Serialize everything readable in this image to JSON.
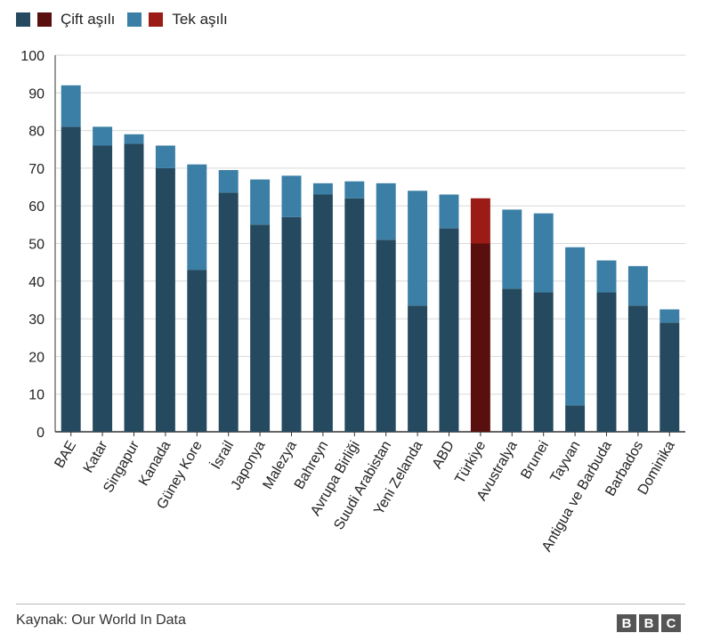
{
  "legend": {
    "items": [
      {
        "label": "Çift aşılı",
        "colors": [
          "#25495e",
          "#5a0f0f"
        ]
      },
      {
        "label": "Tek aşılı",
        "colors": [
          "#3b7fa6",
          "#9b1b17"
        ]
      }
    ]
  },
  "colors": {
    "full_default": "#25495e",
    "partial_default": "#3b7fa6",
    "full_highlight": "#5a0f0f",
    "partial_highlight": "#9b1b17",
    "grid": "#d9d9d9",
    "axis": "#333333"
  },
  "chart_data": {
    "type": "bar",
    "stacked": true,
    "title": "",
    "xlabel": "",
    "ylabel": "",
    "ylim": [
      0,
      100
    ],
    "yticks": [
      0,
      10,
      20,
      30,
      40,
      50,
      60,
      70,
      80,
      90,
      100
    ],
    "grid": true,
    "legend_position": "top-left",
    "highlight": "Türkiye",
    "categories": [
      "BAE",
      "Katar",
      "Singapur",
      "Kanada",
      "Güney Kore",
      "İsrail",
      "Japonya",
      "Malezya",
      "Bahreyn",
      "Avrupa Birliği",
      "Suudi Arabistan",
      "Yeni Zelanda",
      "ABD",
      "Türkiye",
      "Avustralya",
      "Brunei",
      "Tayvan",
      "Antigua ve Barbuda",
      "Barbados",
      "Dominika"
    ],
    "series": [
      {
        "name": "Çift aşılı",
        "values": [
          81,
          76,
          76.5,
          70,
          43,
          63.5,
          55,
          57,
          63,
          62,
          51,
          33.5,
          54,
          50,
          38,
          37,
          7,
          37,
          33.5,
          29
        ]
      },
      {
        "name": "Tek aşılı",
        "values": [
          11,
          5,
          2.5,
          6,
          28,
          6,
          12,
          11,
          3,
          4.5,
          15,
          30.5,
          9,
          12,
          21,
          21,
          42,
          8.5,
          10.5,
          3.5
        ]
      }
    ]
  },
  "footer": {
    "source": "Kaynak: Our World In Data",
    "logo_letters": [
      "B",
      "B",
      "C"
    ]
  }
}
